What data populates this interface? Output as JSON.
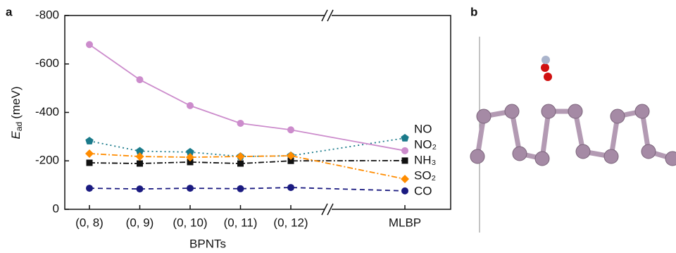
{
  "chart_data": {
    "type": "line",
    "panel_labels": [
      "a",
      "b"
    ],
    "x_label": "BPNTs",
    "y_label": {
      "symbol": "E",
      "subscript": "ad",
      "unit": "(meV)"
    },
    "categories": [
      "(0, 8)",
      "(0, 9)",
      "(0, 10)",
      "(0, 11)",
      "(0, 12)",
      "MLBP"
    ],
    "ylim": [
      0,
      -800
    ],
    "yticks": [
      0,
      -200,
      -400,
      -600,
      -800
    ],
    "axis_break": true,
    "series": [
      {
        "name": "NO",
        "color": "#1a7a8a",
        "label_color": "#1a7a8a",
        "marker": "pentagon",
        "dash": "2,4",
        "values": [
          -282,
          -240,
          -236,
          -218,
          -221,
          -294
        ]
      },
      {
        "name": "NO₂",
        "color": "#cc8ccc",
        "label_color": "#1a1a80",
        "marker": "circle",
        "dash": "",
        "values": [
          -680,
          -535,
          -428,
          -355,
          -328,
          -242
        ]
      },
      {
        "name": "NH₃",
        "color": "#111111",
        "label_color": "#111111",
        "marker": "square",
        "dash": "8,3,2,3",
        "values": [
          -192,
          -189,
          -195,
          -189,
          -200,
          -201
        ]
      },
      {
        "name": "SO₂",
        "color": "#ff8c00",
        "label_color": "#ff8c00",
        "marker": "diamond",
        "dash": "8,3,2,3",
        "values": [
          -230,
          -218,
          -215,
          -218,
          -221,
          -125
        ]
      },
      {
        "name": "CO",
        "color": "#1a1a80",
        "label_color": "#e00000",
        "marker": "circle",
        "dash": "7,5",
        "values": [
          -87,
          -84,
          -87,
          -85,
          -90,
          -76
        ]
      }
    ]
  }
}
